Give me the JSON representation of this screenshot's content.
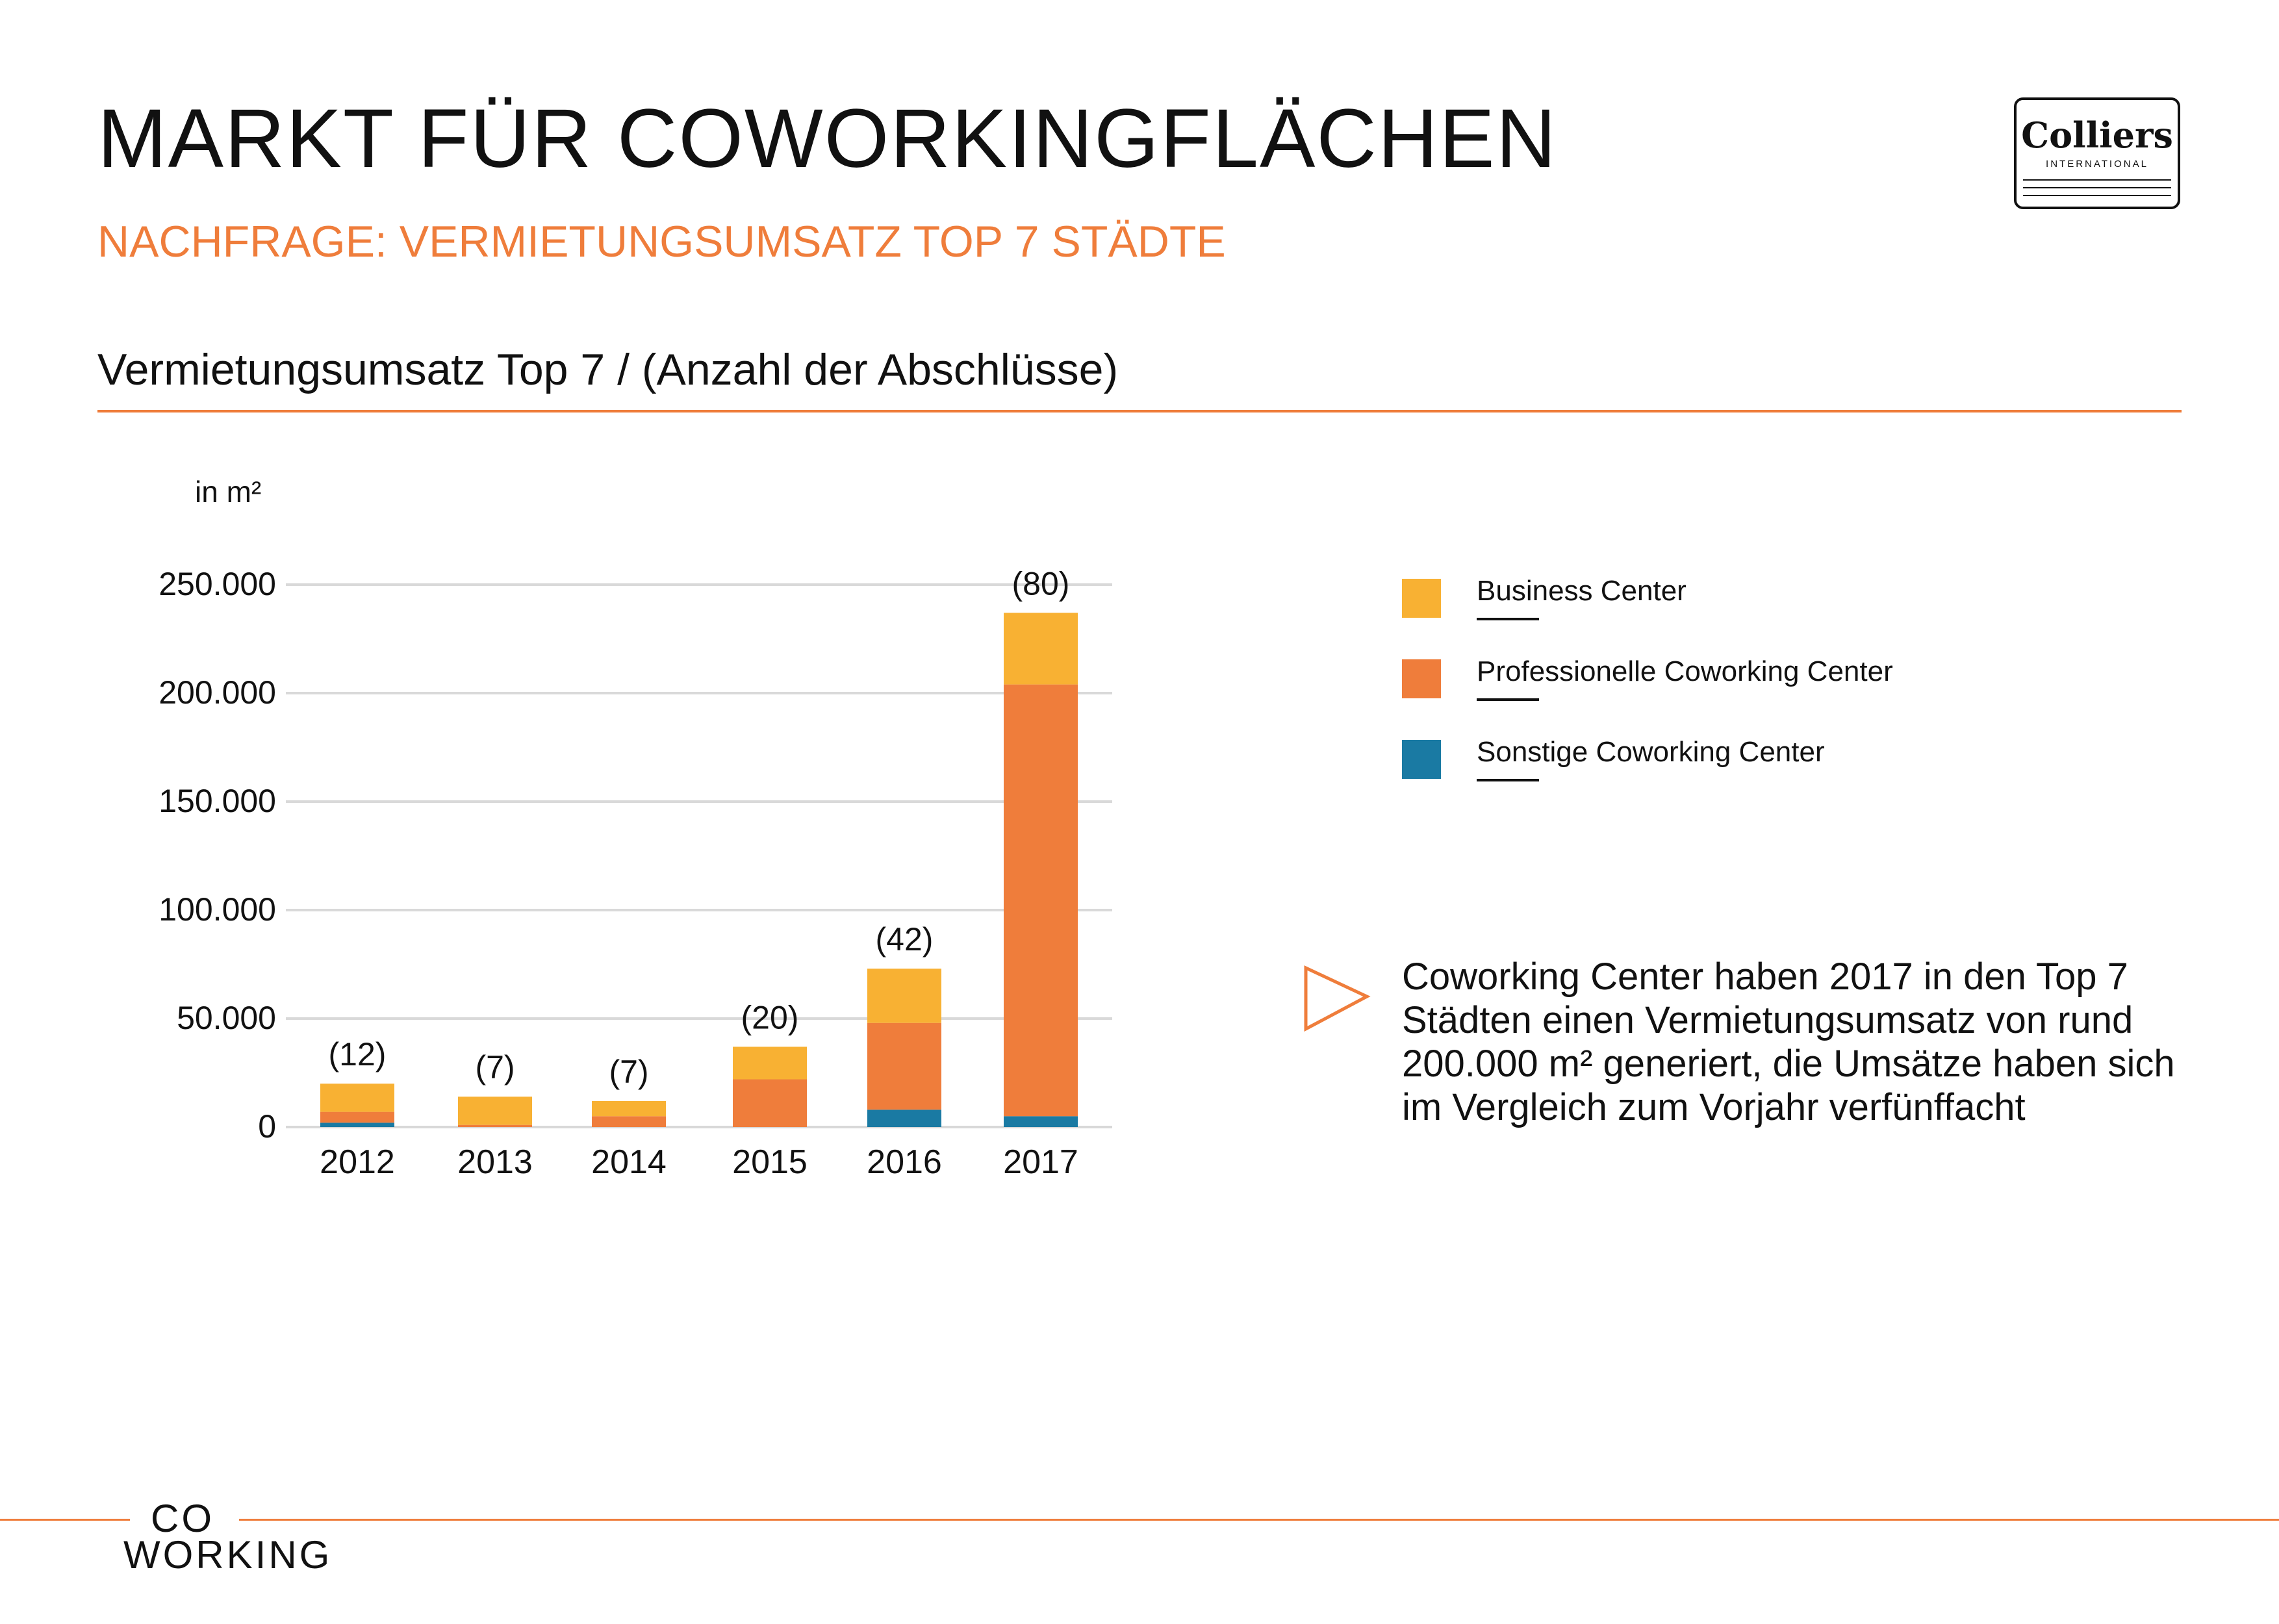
{
  "header": {
    "title": "MARKT FÜR COWORKINGFLÄCHEN",
    "subtitle": "NACHFRAGE: VERMIETUNGSUMSATZ TOP 7 STÄDTE",
    "chart_title": "Vermietungsumsatz Top 7 / (Anzahl der Abschlüsse)"
  },
  "logo": {
    "name": "Colliers",
    "sub": "INTERNATIONAL"
  },
  "colors": {
    "accent": "#ef7d3b",
    "business": "#f8b133",
    "professional": "#ef7d3b",
    "sonstige": "#1a7aa3",
    "grid": "#d9d9d9"
  },
  "chart_data": {
    "type": "bar",
    "stacked": true,
    "ylabel": "in m²",
    "ylim": [
      0,
      250000
    ],
    "ytick_labels": [
      "0",
      "50.000",
      "100.000",
      "150.000",
      "200.000",
      "250.000"
    ],
    "categories": [
      "2012",
      "2013",
      "2014",
      "2015",
      "2016",
      "2017"
    ],
    "deal_counts": [
      "(12)",
      "(7)",
      "(7)",
      "(20)",
      "(42)",
      "(80)"
    ],
    "series": [
      {
        "name": "Sonstige Coworking Center",
        "values": [
          2000,
          0,
          0,
          0,
          8000,
          5000
        ]
      },
      {
        "name": "Professionelle Coworking Center",
        "values": [
          5000,
          1000,
          5000,
          22000,
          40000,
          199000
        ]
      },
      {
        "name": "Business Center",
        "values": [
          13000,
          13000,
          7000,
          15000,
          25000,
          33000
        ]
      }
    ],
    "grid": true,
    "legend_position": "right"
  },
  "legend": [
    {
      "label": "Business Center",
      "color": "#f8b133"
    },
    {
      "label": "Professionelle Coworking Center",
      "color": "#ef7d3b"
    },
    {
      "label": "Sonstige Coworking Center",
      "color": "#1a7aa3"
    }
  ],
  "callout": {
    "text": "Coworking Center haben 2017 in den Top 7 Städten einen Vermietungsum­satz von rund 200.000 m² generiert, die Umsätze haben sich im Vergleich zum Vorjahr verfünffacht",
    "icon": "triangle-arrow-icon"
  },
  "footer": {
    "logo_top": "CO",
    "logo_bottom": "WORKING"
  }
}
